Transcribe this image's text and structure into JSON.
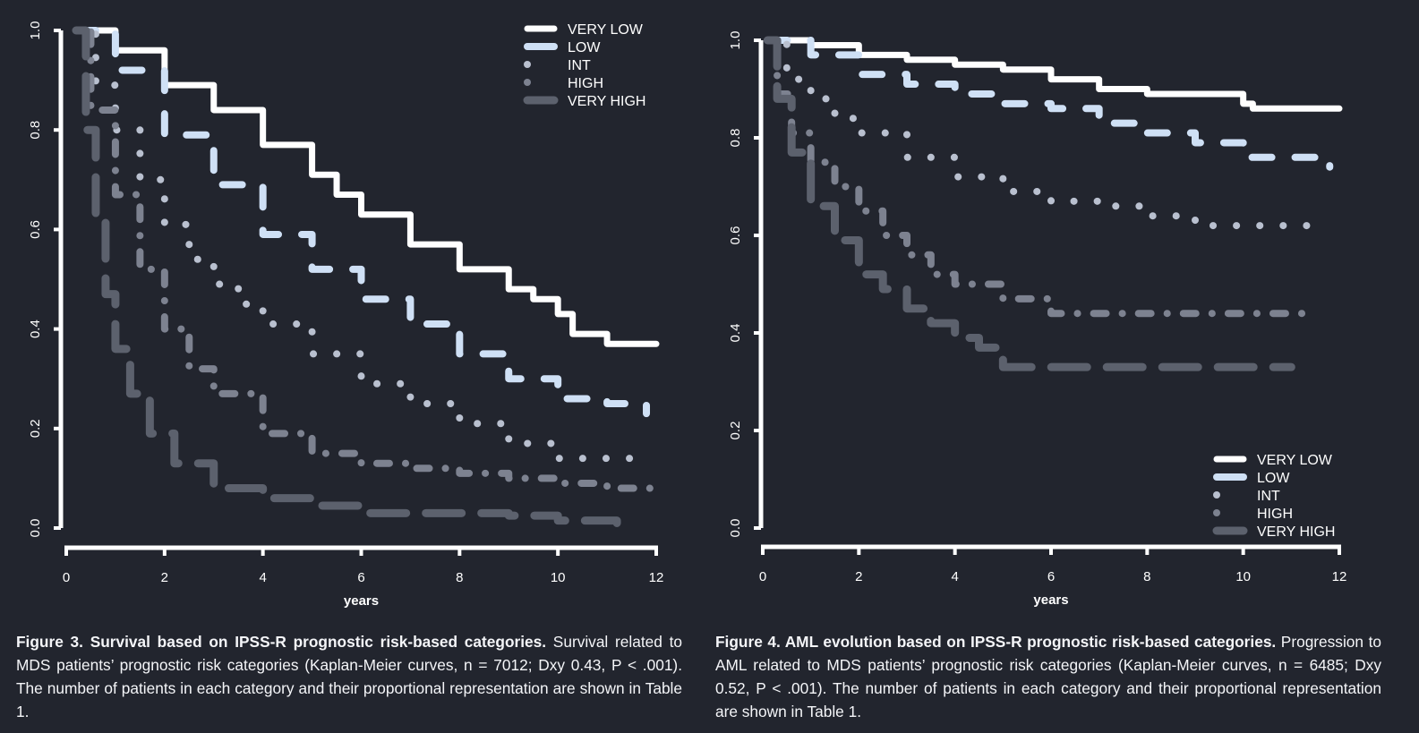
{
  "chart_data": [
    {
      "type": "line",
      "subtype": "kaplan-meier",
      "xlabel": "years",
      "ylabel": "",
      "xlim": [
        0,
        12
      ],
      "ylim": [
        0,
        1
      ],
      "xticks": [
        "0",
        "2",
        "4",
        "6",
        "8",
        "10",
        "12"
      ],
      "yticks": [
        "0.0",
        "0.2",
        "0.4",
        "0.6",
        "0.8",
        "1.0"
      ],
      "legend_position": "top-right",
      "grid": false,
      "series": [
        {
          "name": "VERY LOW",
          "style": "solid",
          "color": "#ffffff",
          "x": [
            0.2,
            1,
            2,
            3,
            4,
            5,
            5.5,
            6,
            7,
            8,
            9,
            9.5,
            10,
            10.3,
            11,
            12
          ],
          "y": [
            1.0,
            0.96,
            0.89,
            0.84,
            0.77,
            0.71,
            0.67,
            0.63,
            0.57,
            0.52,
            0.48,
            0.46,
            0.43,
            0.39,
            0.37,
            0.37
          ]
        },
        {
          "name": "LOW",
          "style": "long-dash",
          "color": "#cfe0f5",
          "x": [
            0.2,
            1,
            2,
            3,
            4,
            5,
            6,
            7,
            8,
            9,
            10,
            11,
            11.8
          ],
          "y": [
            1.0,
            0.92,
            0.79,
            0.69,
            0.59,
            0.52,
            0.46,
            0.41,
            0.35,
            0.3,
            0.26,
            0.25,
            0.23
          ]
        },
        {
          "name": "INT",
          "style": "dotted",
          "color": "#b9c0cf",
          "x": [
            0.2,
            0.6,
            1,
            1.5,
            2,
            2.5,
            3,
            3.5,
            4,
            5,
            6,
            7,
            8,
            9,
            10,
            11.5
          ],
          "y": [
            1.0,
            0.89,
            0.8,
            0.7,
            0.61,
            0.54,
            0.49,
            0.45,
            0.41,
            0.35,
            0.29,
            0.25,
            0.21,
            0.17,
            0.14,
            0.13
          ]
        },
        {
          "name": "HIGH",
          "style": "dash-dot",
          "color": "#7d8290",
          "x": [
            0.2,
            0.5,
            1,
            1.5,
            2,
            2.5,
            3,
            4,
            5,
            6,
            7,
            8,
            9,
            10,
            11,
            12
          ],
          "y": [
            1.0,
            0.84,
            0.67,
            0.52,
            0.4,
            0.32,
            0.27,
            0.19,
            0.15,
            0.13,
            0.12,
            0.11,
            0.1,
            0.09,
            0.08,
            0.075
          ]
        },
        {
          "name": "VERY HIGH",
          "style": "dashed",
          "color": "#5c616d",
          "x": [
            0.2,
            0.4,
            0.6,
            0.8,
            1,
            1.3,
            1.7,
            2.2,
            3,
            4,
            5,
            6,
            7,
            8,
            9,
            10,
            11.2
          ],
          "y": [
            1.0,
            0.8,
            0.62,
            0.47,
            0.36,
            0.27,
            0.19,
            0.13,
            0.08,
            0.06,
            0.045,
            0.03,
            0.03,
            0.03,
            0.025,
            0.015,
            0.01
          ]
        }
      ]
    },
    {
      "type": "line",
      "subtype": "kaplan-meier",
      "xlabel": "years",
      "ylabel": "",
      "xlim": [
        0,
        12
      ],
      "ylim": [
        0,
        1
      ],
      "xticks": [
        "0",
        "2",
        "4",
        "6",
        "8",
        "10",
        "12"
      ],
      "yticks": [
        "0.0",
        "0.2",
        "0.4",
        "0.6",
        "0.8",
        "1.0"
      ],
      "legend_position": "bottom-right",
      "grid": false,
      "series": [
        {
          "name": "VERY LOW",
          "style": "solid",
          "color": "#ffffff",
          "x": [
            0.1,
            1,
            2,
            3,
            4,
            5,
            6,
            7,
            8,
            9,
            10,
            10.2,
            12
          ],
          "y": [
            1.0,
            0.99,
            0.97,
            0.96,
            0.95,
            0.94,
            0.92,
            0.9,
            0.89,
            0.89,
            0.87,
            0.86,
            0.86
          ]
        },
        {
          "name": "LOW",
          "style": "long-dash",
          "color": "#cfe0f5",
          "x": [
            0.1,
            1,
            2,
            3,
            4,
            5,
            6,
            7,
            8,
            9,
            10,
            11.8
          ],
          "y": [
            1.0,
            0.97,
            0.93,
            0.91,
            0.89,
            0.87,
            0.86,
            0.83,
            0.81,
            0.79,
            0.76,
            0.74
          ]
        },
        {
          "name": "INT",
          "style": "dotted",
          "color": "#b9c0cf",
          "x": [
            0.1,
            0.5,
            1,
            1.5,
            2,
            3,
            4,
            5,
            6,
            7,
            8,
            9,
            11.5
          ],
          "y": [
            1.0,
            0.92,
            0.88,
            0.84,
            0.81,
            0.76,
            0.72,
            0.69,
            0.67,
            0.66,
            0.64,
            0.62,
            0.62
          ]
        },
        {
          "name": "HIGH",
          "style": "dash-dot",
          "color": "#7d8290",
          "x": [
            0.1,
            0.3,
            0.6,
            1,
            1.5,
            2,
            2.5,
            3,
            3.5,
            4,
            5,
            6,
            11.5
          ],
          "y": [
            1.0,
            0.89,
            0.81,
            0.75,
            0.7,
            0.65,
            0.6,
            0.56,
            0.52,
            0.5,
            0.47,
            0.44,
            0.44
          ]
        },
        {
          "name": "VERY HIGH",
          "style": "dashed",
          "color": "#5c616d",
          "x": [
            0.1,
            0.3,
            0.6,
            1,
            1.5,
            2,
            2.5,
            3,
            3.5,
            4,
            4.5,
            5,
            11
          ],
          "y": [
            1.0,
            0.88,
            0.77,
            0.66,
            0.59,
            0.52,
            0.49,
            0.45,
            0.42,
            0.39,
            0.37,
            0.33,
            0.33
          ]
        }
      ]
    }
  ],
  "captions": [
    {
      "title": "Figure 3. Survival based on IPSS-R prognostic risk-based categories.",
      "body": " Survival related to MDS patients’ prognostic risk categories (Kaplan-Meier curves, n = 7012; Dxy 0.43, P < .001). The number of patients in each category and their proportional representation are shown in Table 1."
    },
    {
      "title": "Figure 4. AML evolution based on IPSS-R prognostic risk-based categories.",
      "body": " Progression to AML related to MDS patients’ prognostic risk categories (Kaplan-Meier curves, n = 6485; Dxy 0.52, P < .001). The number of patients in each category and their proportional representation are shown in Table 1."
    }
  ]
}
